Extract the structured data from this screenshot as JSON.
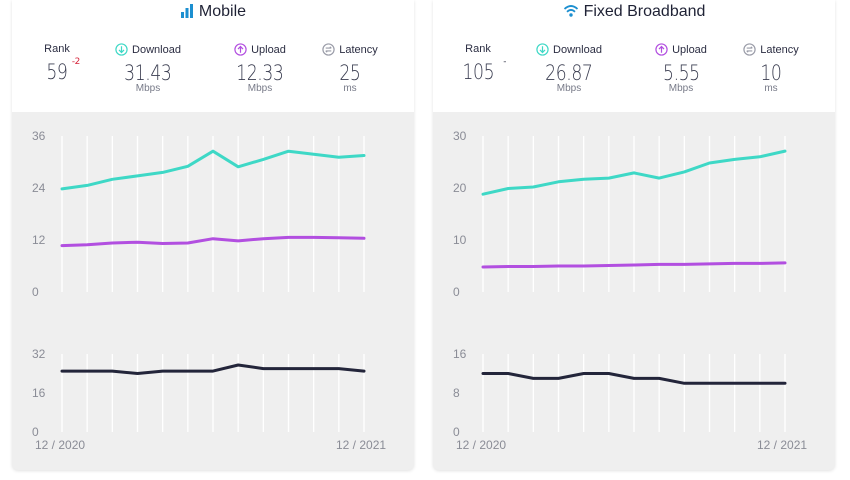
{
  "colors": {
    "download": "#3ed8c6",
    "upload": "#b24fe0",
    "latency": "#23253a",
    "rank_change": "#d6243a"
  },
  "panels": [
    {
      "title": "Mobile",
      "icon": "signal-bars-icon",
      "metrics": {
        "rank": {
          "label": "Rank",
          "value": "59",
          "change": "-2"
        },
        "download": {
          "label": "Download",
          "value": "31.43",
          "unit": "Mbps",
          "icon": "download-arrow-icon"
        },
        "upload": {
          "label": "Upload",
          "value": "12.33",
          "unit": "Mbps",
          "icon": "upload-arrow-icon"
        },
        "latency": {
          "label": "Latency",
          "value": "25",
          "unit": "ms",
          "icon": "latency-arrows-icon"
        }
      },
      "x_start_label": "12 / 2020",
      "x_end_label": "12 / 2021"
    },
    {
      "title": "Fixed Broadband",
      "icon": "wifi-icon",
      "metrics": {
        "rank": {
          "label": "Rank",
          "value": "105",
          "change": "-"
        },
        "download": {
          "label": "Download",
          "value": "26.87",
          "unit": "Mbps",
          "icon": "download-arrow-icon"
        },
        "upload": {
          "label": "Upload",
          "value": "5.55",
          "unit": "Mbps",
          "icon": "upload-arrow-icon"
        },
        "latency": {
          "label": "Latency",
          "value": "10",
          "unit": "ms",
          "icon": "latency-arrows-icon"
        }
      },
      "x_start_label": "12 / 2020",
      "x_end_label": "12 / 2021"
    }
  ],
  "chart_data": [
    {
      "type": "line",
      "panel": "Mobile",
      "x": [
        "12 / 2020",
        "",
        "",
        "",
        "",
        "",
        "",
        "",
        "",
        "",
        "",
        "",
        "12 / 2021"
      ],
      "series": [
        {
          "key": "download",
          "values": [
            23.8,
            24.6,
            26.0,
            26.8,
            27.6,
            29.0,
            32.5,
            28.9,
            30.6,
            32.5,
            31.8,
            31.1,
            31.5
          ]
        },
        {
          "key": "upload",
          "values": [
            10.7,
            10.9,
            11.3,
            11.5,
            11.2,
            11.3,
            12.3,
            11.8,
            12.3,
            12.6,
            12.6,
            12.5,
            12.4
          ]
        }
      ],
      "ylim": [
        0,
        36
      ],
      "yticks": [
        0,
        12,
        24,
        36
      ]
    },
    {
      "type": "line",
      "panel": "Mobile",
      "x": [
        "12 / 2020",
        "",
        "",
        "",
        "",
        "",
        "",
        "",
        "",
        "",
        "",
        "",
        "12 / 2021"
      ],
      "series": [
        {
          "key": "latency",
          "values": [
            25,
            25,
            25,
            24,
            25,
            25,
            25,
            27.5,
            26,
            26,
            26,
            26,
            25
          ]
        }
      ],
      "ylim": [
        0,
        32
      ],
      "yticks": [
        0,
        16,
        32
      ]
    },
    {
      "type": "line",
      "panel": "Fixed Broadband",
      "x": [
        "12 / 2020",
        "",
        "",
        "",
        "",
        "",
        "",
        "",
        "",
        "",
        "",
        "",
        "12 / 2021"
      ],
      "series": [
        {
          "key": "download",
          "values": [
            18.8,
            19.9,
            20.2,
            21.2,
            21.7,
            21.9,
            22.9,
            21.9,
            23.1,
            24.8,
            25.5,
            26.0,
            27.1
          ]
        },
        {
          "key": "upload",
          "values": [
            4.8,
            4.9,
            4.9,
            5.0,
            5.0,
            5.1,
            5.2,
            5.3,
            5.3,
            5.4,
            5.5,
            5.5,
            5.6
          ]
        }
      ],
      "ylim": [
        0,
        30
      ],
      "yticks": [
        0,
        10,
        20,
        30
      ]
    },
    {
      "type": "line",
      "panel": "Fixed Broadband",
      "x": [
        "12 / 2020",
        "",
        "",
        "",
        "",
        "",
        "",
        "",
        "",
        "",
        "",
        "",
        "12 / 2021"
      ],
      "series": [
        {
          "key": "latency",
          "values": [
            12,
            12,
            11,
            11,
            12,
            12,
            11,
            11,
            10,
            10,
            10,
            10,
            10
          ]
        }
      ],
      "ylim": [
        0,
        16
      ],
      "yticks": [
        0,
        8,
        16
      ]
    }
  ]
}
